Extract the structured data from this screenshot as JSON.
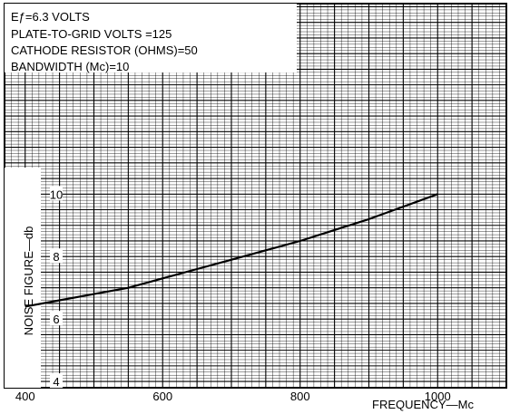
{
  "chart_data": {
    "type": "line",
    "annotation_lines": [
      "Eƒ=6.3 VOLTS",
      "PLATE-TO-GRID VOLTS =125",
      "CATHODE RESISTOR (OHMS)=50",
      "BANDWIDTH (Mc)=10"
    ],
    "xlabel": "FREQUENCY—Mc",
    "ylabel": "NOISE FIGURE—db",
    "x_ticks": [
      400,
      600,
      800,
      1000
    ],
    "y_ticks": [
      4,
      6,
      8,
      10
    ],
    "xlim": [
      370,
      1100
    ],
    "ylim": [
      3.8,
      16.1
    ],
    "grid": true,
    "series": [
      {
        "x": [
          400,
          450,
          500,
          550,
          600,
          650,
          700,
          750,
          800,
          850,
          900,
          950,
          1000
        ],
        "y": [
          6.4,
          6.6,
          6.8,
          7.0,
          7.3,
          7.6,
          7.9,
          8.2,
          8.5,
          8.85,
          9.2,
          9.6,
          10.0
        ]
      }
    ]
  }
}
